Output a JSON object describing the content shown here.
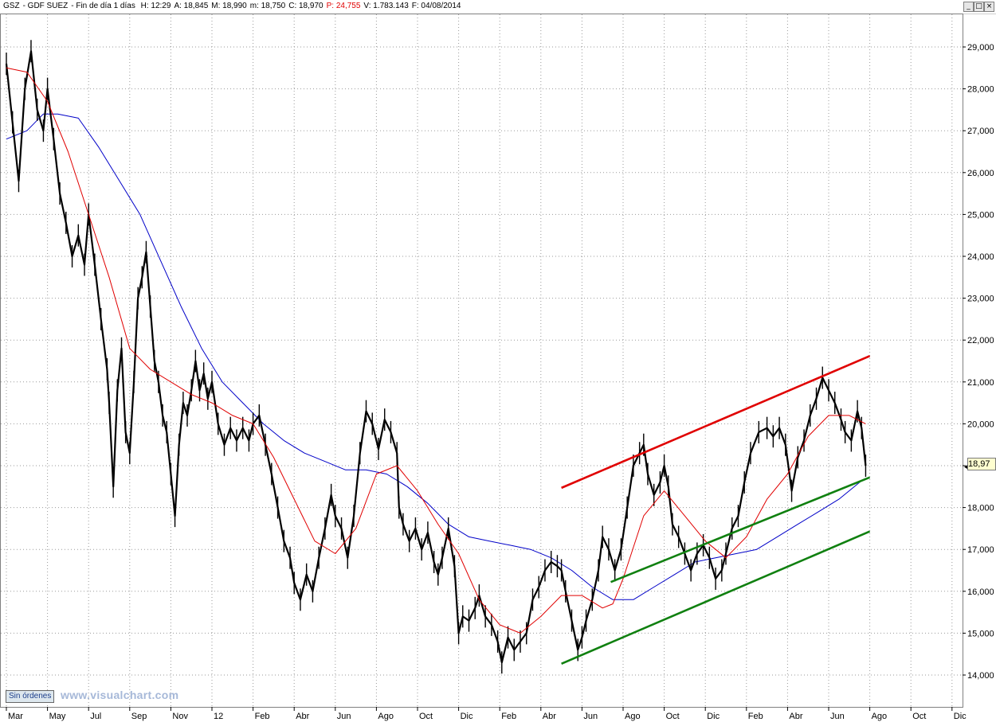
{
  "header": {
    "symbol": "GSZ",
    "name": "GDF SUEZ",
    "timeframe": "Fin de día 1 días",
    "fields": [
      {
        "label": "H:",
        "value": "12:29",
        "color": "#000000"
      },
      {
        "label": "A:",
        "value": "18,845",
        "color": "#000000"
      },
      {
        "label": "M:",
        "value": "18,990",
        "color": "#000000"
      },
      {
        "label": "m:",
        "value": "18,750",
        "color": "#000000"
      },
      {
        "label": "C:",
        "value": "18,970",
        "color": "#000000"
      },
      {
        "label": "P:",
        "value": "24,755",
        "color": "#e00000"
      },
      {
        "label": "V:",
        "value": "1.783.143",
        "color": "#000000"
      },
      {
        "label": "F:",
        "value": "04/08/2014",
        "color": "#000000"
      }
    ]
  },
  "window_buttons": {
    "minimize": "_",
    "restore": "□",
    "close": "×"
  },
  "status": {
    "orders_label": "Sin órdenes"
  },
  "watermark": "www.visualchart.com",
  "last_price_label": "18,97",
  "colors": {
    "price": "#000000",
    "ma_fast": "#e00000",
    "ma_slow": "#0000c8",
    "channel_upper": "#e00000",
    "channel_lower": "#108010",
    "grid": "#9a9a9a",
    "price_tag_bg": "#ffffd0"
  },
  "chart_data": {
    "type": "line",
    "title": "",
    "xlabel": "",
    "ylabel": "",
    "ylim": [
      13.1,
      29.8
    ],
    "y_ticks": [
      "14,000",
      "15,000",
      "16,000",
      "17,000",
      "18,000",
      "19,000",
      "20,000",
      "21,000",
      "22,000",
      "23,000",
      "24,000",
      "25,000",
      "26,000",
      "27,000",
      "28,000",
      "29,000"
    ],
    "y_tick_values": [
      14,
      15,
      16,
      17,
      18,
      19,
      20,
      21,
      22,
      23,
      24,
      25,
      26,
      27,
      28,
      29
    ],
    "x_ticks": [
      "Mar",
      "May",
      "Jul",
      "Sep",
      "Nov",
      "12",
      "Feb",
      "Abr",
      "Jun",
      "Ago",
      "Oct",
      "Dic",
      "Feb",
      "Abr",
      "Jun",
      "Ago",
      "Oct",
      "Dic",
      "Feb",
      "Abr",
      "Jun",
      "Ago",
      "Oct",
      "Dic"
    ],
    "x_tick_months": [
      0,
      2,
      4,
      6,
      8,
      10,
      12,
      14,
      16,
      18,
      20,
      22,
      24,
      26,
      28,
      30,
      32,
      34,
      36,
      38,
      40,
      42,
      44,
      46
    ],
    "x_range_months": [
      0,
      48
    ],
    "x_unit": "months since Mar 2011",
    "series": [
      {
        "name": "",
        "role": "price",
        "points": [
          [
            0,
            28.6
          ],
          [
            0.3,
            27.2
          ],
          [
            0.6,
            25.8
          ],
          [
            0.9,
            28.0
          ],
          [
            1.2,
            28.9
          ],
          [
            1.5,
            27.5
          ],
          [
            1.8,
            27.0
          ],
          [
            2.0,
            28.0
          ],
          [
            2.3,
            26.8
          ],
          [
            2.6,
            25.5
          ],
          [
            2.9,
            24.8
          ],
          [
            3.2,
            24.0
          ],
          [
            3.5,
            24.5
          ],
          [
            3.8,
            23.8
          ],
          [
            4.0,
            25.0
          ],
          [
            4.3,
            23.8
          ],
          [
            4.6,
            22.5
          ],
          [
            4.9,
            21.3
          ],
          [
            5.0,
            20.5
          ],
          [
            5.2,
            18.5
          ],
          [
            5.4,
            20.8
          ],
          [
            5.6,
            21.8
          ],
          [
            5.8,
            19.8
          ],
          [
            6.0,
            19.3
          ],
          [
            6.2,
            21.0
          ],
          [
            6.4,
            23.0
          ],
          [
            6.6,
            23.5
          ],
          [
            6.8,
            24.1
          ],
          [
            7.0,
            22.8
          ],
          [
            7.2,
            21.5
          ],
          [
            7.4,
            21.0
          ],
          [
            7.6,
            20.2
          ],
          [
            7.8,
            19.8
          ],
          [
            8.0,
            18.8
          ],
          [
            8.2,
            17.8
          ],
          [
            8.4,
            19.5
          ],
          [
            8.6,
            20.5
          ],
          [
            8.8,
            20.2
          ],
          [
            9.0,
            20.8
          ],
          [
            9.2,
            21.5
          ],
          [
            9.4,
            20.8
          ],
          [
            9.6,
            21.2
          ],
          [
            9.8,
            20.6
          ],
          [
            10.0,
            21.0
          ],
          [
            10.3,
            20.0
          ],
          [
            10.6,
            19.5
          ],
          [
            10.9,
            19.9
          ],
          [
            11.2,
            19.6
          ],
          [
            11.5,
            19.9
          ],
          [
            11.8,
            19.6
          ],
          [
            12.0,
            20.0
          ],
          [
            12.3,
            20.2
          ],
          [
            12.6,
            19.5
          ],
          [
            12.9,
            18.8
          ],
          [
            13.2,
            18.0
          ],
          [
            13.5,
            17.2
          ],
          [
            13.8,
            16.8
          ],
          [
            14.0,
            16.2
          ],
          [
            14.3,
            15.8
          ],
          [
            14.6,
            16.4
          ],
          [
            14.9,
            16.0
          ],
          [
            15.2,
            16.8
          ],
          [
            15.5,
            17.5
          ],
          [
            15.8,
            18.3
          ],
          [
            16.0,
            17.8
          ],
          [
            16.3,
            17.5
          ],
          [
            16.6,
            16.8
          ],
          [
            16.9,
            17.8
          ],
          [
            17.2,
            19.3
          ],
          [
            17.5,
            20.3
          ],
          [
            17.8,
            20.0
          ],
          [
            18.1,
            19.4
          ],
          [
            18.4,
            20.1
          ],
          [
            18.7,
            19.8
          ],
          [
            19.0,
            19.3
          ],
          [
            19.1,
            18.0
          ],
          [
            19.3,
            17.6
          ],
          [
            19.6,
            17.2
          ],
          [
            19.9,
            17.5
          ],
          [
            20.2,
            17.0
          ],
          [
            20.5,
            17.4
          ],
          [
            20.8,
            16.7
          ],
          [
            21.0,
            16.4
          ],
          [
            21.2,
            16.8
          ],
          [
            21.5,
            17.5
          ],
          [
            21.8,
            16.6
          ],
          [
            22.0,
            15.0
          ],
          [
            22.2,
            15.4
          ],
          [
            22.5,
            15.3
          ],
          [
            22.8,
            15.6
          ],
          [
            23.0,
            15.9
          ],
          [
            23.3,
            15.4
          ],
          [
            23.6,
            15.2
          ],
          [
            23.9,
            14.8
          ],
          [
            24.1,
            14.3
          ],
          [
            24.4,
            14.9
          ],
          [
            24.7,
            14.6
          ],
          [
            25.0,
            14.8
          ],
          [
            25.3,
            15.0
          ],
          [
            25.6,
            15.8
          ],
          [
            25.9,
            16.1
          ],
          [
            26.2,
            16.5
          ],
          [
            26.5,
            16.7
          ],
          [
            26.8,
            16.6
          ],
          [
            27.0,
            16.5
          ],
          [
            27.2,
            16.0
          ],
          [
            27.5,
            15.3
          ],
          [
            27.8,
            14.6
          ],
          [
            28.0,
            14.9
          ],
          [
            28.2,
            15.3
          ],
          [
            28.5,
            15.8
          ],
          [
            28.8,
            16.5
          ],
          [
            29.0,
            17.3
          ],
          [
            29.3,
            17.0
          ],
          [
            29.6,
            16.5
          ],
          [
            29.9,
            17.0
          ],
          [
            30.2,
            18.0
          ],
          [
            30.5,
            19.0
          ],
          [
            30.8,
            19.3
          ],
          [
            31.0,
            19.5
          ],
          [
            31.2,
            18.8
          ],
          [
            31.5,
            18.3
          ],
          [
            31.8,
            18.6
          ],
          [
            32.0,
            19.0
          ],
          [
            32.2,
            18.5
          ],
          [
            32.4,
            17.6
          ],
          [
            32.7,
            17.3
          ],
          [
            33.0,
            16.9
          ],
          [
            33.3,
            16.5
          ],
          [
            33.6,
            16.9
          ],
          [
            33.9,
            17.1
          ],
          [
            34.2,
            16.8
          ],
          [
            34.5,
            16.3
          ],
          [
            34.8,
            16.5
          ],
          [
            35.0,
            16.9
          ],
          [
            35.3,
            17.5
          ],
          [
            35.6,
            17.8
          ],
          [
            35.9,
            18.6
          ],
          [
            36.2,
            19.3
          ],
          [
            36.6,
            19.8
          ],
          [
            37.0,
            19.9
          ],
          [
            37.3,
            19.7
          ],
          [
            37.6,
            19.9
          ],
          [
            37.9,
            19.5
          ],
          [
            38.2,
            18.4
          ],
          [
            38.5,
            19.2
          ],
          [
            38.8,
            19.6
          ],
          [
            39.1,
            20.2
          ],
          [
            39.4,
            20.6
          ],
          [
            39.7,
            21.1
          ],
          [
            40.0,
            20.8
          ],
          [
            40.3,
            20.5
          ],
          [
            40.6,
            20.1
          ],
          [
            40.8,
            19.8
          ],
          [
            41.1,
            19.6
          ],
          [
            41.4,
            20.3
          ],
          [
            41.6,
            19.9
          ],
          [
            41.8,
            19.0
          ]
        ]
      },
      {
        "name": "",
        "role": "ma_fast",
        "points": [
          [
            0,
            28.5
          ],
          [
            1,
            28.4
          ],
          [
            2,
            27.7
          ],
          [
            3,
            26.5
          ],
          [
            4,
            25.0
          ],
          [
            5,
            23.5
          ],
          [
            6,
            21.8
          ],
          [
            7,
            21.3
          ],
          [
            8,
            21.0
          ],
          [
            9,
            20.7
          ],
          [
            10,
            20.5
          ],
          [
            11,
            20.2
          ],
          [
            12,
            20.0
          ],
          [
            13,
            19.2
          ],
          [
            14,
            18.2
          ],
          [
            15,
            17.2
          ],
          [
            16,
            16.9
          ],
          [
            17,
            17.5
          ],
          [
            18,
            18.8
          ],
          [
            19,
            19.0
          ],
          [
            20,
            18.4
          ],
          [
            21,
            17.6
          ],
          [
            22,
            16.9
          ],
          [
            23,
            15.8
          ],
          [
            24,
            15.2
          ],
          [
            25,
            15.0
          ],
          [
            26,
            15.4
          ],
          [
            27,
            15.9
          ],
          [
            28,
            15.9
          ],
          [
            29,
            15.6
          ],
          [
            29.5,
            15.7
          ],
          [
            30,
            16.3
          ],
          [
            31,
            17.8
          ],
          [
            32,
            18.4
          ],
          [
            33,
            17.8
          ],
          [
            34,
            17.2
          ],
          [
            35,
            16.8
          ],
          [
            36,
            17.3
          ],
          [
            37,
            18.2
          ],
          [
            38,
            18.8
          ],
          [
            39,
            19.7
          ],
          [
            40,
            20.2
          ],
          [
            41,
            20.2
          ],
          [
            41.8,
            20.0
          ]
        ]
      },
      {
        "name": "",
        "role": "ma_slow",
        "points": [
          [
            0,
            26.8
          ],
          [
            1,
            27.0
          ],
          [
            1.8,
            27.4
          ],
          [
            2.5,
            27.4
          ],
          [
            3.5,
            27.3
          ],
          [
            4.5,
            26.6
          ],
          [
            5.5,
            25.8
          ],
          [
            6.5,
            25.0
          ],
          [
            7.5,
            23.9
          ],
          [
            8.5,
            22.8
          ],
          [
            9.5,
            21.8
          ],
          [
            10.5,
            21.0
          ],
          [
            11.5,
            20.5
          ],
          [
            12.5,
            20.0
          ],
          [
            13.5,
            19.6
          ],
          [
            14.5,
            19.3
          ],
          [
            15.5,
            19.1
          ],
          [
            16.5,
            18.9
          ],
          [
            17.5,
            18.9
          ],
          [
            18.5,
            18.8
          ],
          [
            19.5,
            18.5
          ],
          [
            20.5,
            18.1
          ],
          [
            21.5,
            17.6
          ],
          [
            22.5,
            17.3
          ],
          [
            23.5,
            17.2
          ],
          [
            24.5,
            17.1
          ],
          [
            25.5,
            17.0
          ],
          [
            26.5,
            16.8
          ],
          [
            27.5,
            16.5
          ],
          [
            28.5,
            16.1
          ],
          [
            29.5,
            15.8
          ],
          [
            30.5,
            15.8
          ],
          [
            31.5,
            16.1
          ],
          [
            32.5,
            16.4
          ],
          [
            33.5,
            16.7
          ],
          [
            34.5,
            16.8
          ],
          [
            35.5,
            16.9
          ],
          [
            36.5,
            17.0
          ],
          [
            37.5,
            17.3
          ],
          [
            38.5,
            17.6
          ],
          [
            39.5,
            17.9
          ],
          [
            40.5,
            18.2
          ],
          [
            41.5,
            18.6
          ],
          [
            41.8,
            18.7
          ]
        ]
      }
    ],
    "trendlines": [
      {
        "role": "channel_upper",
        "from": [
          27.0,
          18.47
        ],
        "to": [
          42.0,
          21.62
        ]
      },
      {
        "role": "channel_lower",
        "from": [
          27.0,
          14.27
        ],
        "to": [
          42.0,
          17.43
        ]
      },
      {
        "role": "channel_lower",
        "from": [
          29.4,
          16.22
        ],
        "to": [
          42.0,
          18.72
        ]
      }
    ],
    "legend": "none",
    "grid": true
  }
}
